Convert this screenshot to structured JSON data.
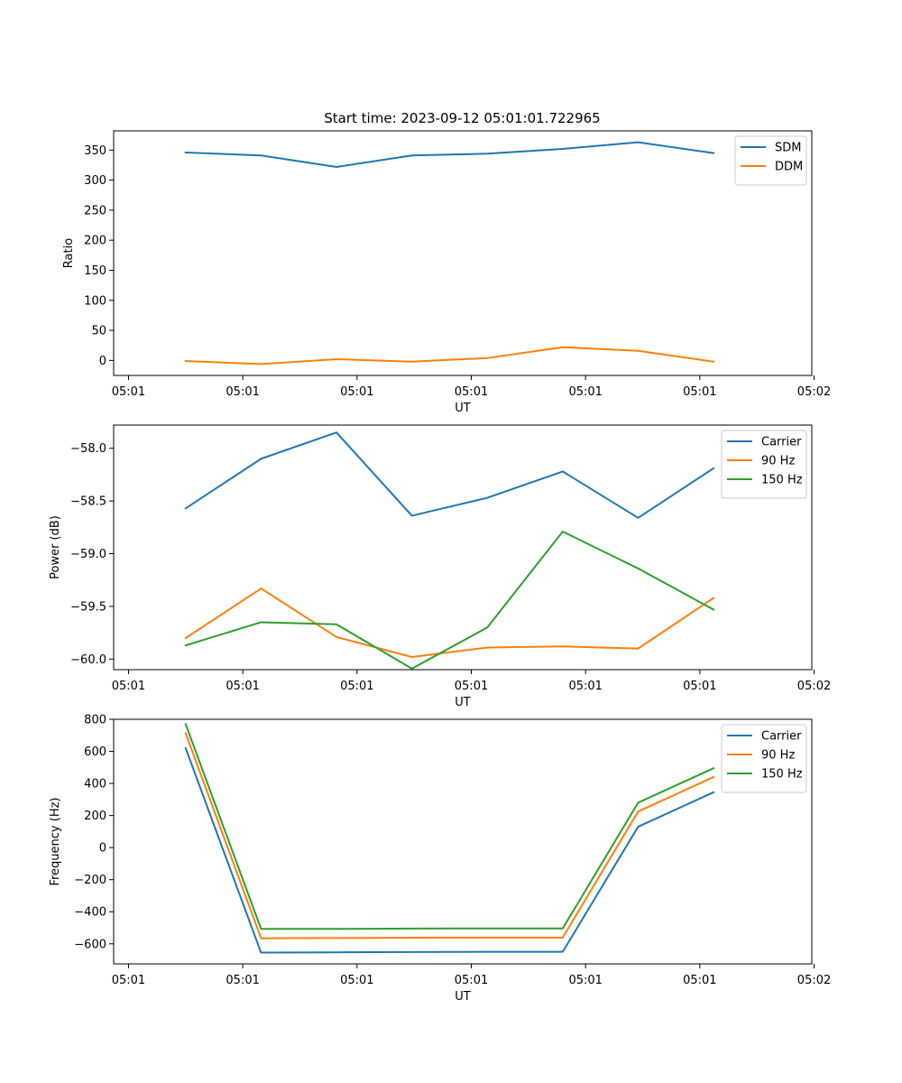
{
  "figure": {
    "title": "Start time: 2023-09-12 05:01:01.722965"
  },
  "chart_data": [
    {
      "type": "line",
      "title": "Start time: 2023-09-12 05:01:01.722965",
      "xlabel": "UT",
      "ylabel": "Ratio",
      "xlim": [
        -0.13,
        5.98
      ],
      "x_ticks": [
        0,
        1,
        2,
        3,
        4,
        5,
        6
      ],
      "x_tick_labels": [
        "05:01",
        "05:01",
        "05:01",
        "05:01",
        "05:01",
        "05:01",
        "05:02"
      ],
      "ylim": [
        -25,
        382
      ],
      "y_ticks": [
        0,
        50,
        100,
        150,
        200,
        250,
        300,
        350
      ],
      "y_tick_labels": [
        "0",
        "50",
        "100",
        "150",
        "200",
        "250",
        "300",
        "350"
      ],
      "legend": "top-right",
      "x": [
        0.5,
        1.16,
        1.82,
        2.48,
        3.14,
        3.8,
        4.46,
        5.12
      ],
      "series": [
        {
          "name": "SDM",
          "color": "#1f77b4",
          "values": [
            346,
            341,
            322,
            341,
            344,
            352,
            363,
            345
          ]
        },
        {
          "name": "DDM",
          "color": "#ff7f0e",
          "values": [
            -1,
            -6,
            2,
            -2,
            4,
            22,
            16,
            -2
          ]
        }
      ]
    },
    {
      "type": "line",
      "title": "",
      "xlabel": "UT",
      "ylabel": "Power (dB)",
      "xlim": [
        -0.13,
        5.98
      ],
      "x_ticks": [
        0,
        1,
        2,
        3,
        4,
        5,
        6
      ],
      "x_tick_labels": [
        "05:01",
        "05:01",
        "05:01",
        "05:01",
        "05:01",
        "05:01",
        "05:02"
      ],
      "ylim": [
        -60.1,
        -57.78
      ],
      "y_ticks": [
        -58.0,
        -58.5,
        -59.0,
        -59.5,
        -60.0
      ],
      "y_tick_labels": [
        "−58.0",
        "−58.5",
        "−59.0",
        "−59.5",
        "−60.0"
      ],
      "legend": "top-right",
      "x": [
        0.5,
        1.16,
        1.82,
        2.48,
        3.14,
        3.8,
        4.46,
        5.12
      ],
      "series": [
        {
          "name": "Carrier",
          "color": "#1f77b4",
          "values": [
            -58.57,
            -58.1,
            -57.85,
            -58.64,
            -58.47,
            -58.22,
            -58.66,
            -58.19
          ]
        },
        {
          "name": "90 Hz",
          "color": "#ff7f0e",
          "values": [
            -59.8,
            -59.33,
            -59.79,
            -59.98,
            -59.89,
            -59.88,
            -59.9,
            -59.42
          ]
        },
        {
          "name": "150 Hz",
          "color": "#2ca02c",
          "values": [
            -59.87,
            -59.65,
            -59.67,
            -60.09,
            -59.7,
            -58.79,
            -59.14,
            -59.53
          ]
        }
      ]
    },
    {
      "type": "line",
      "title": "",
      "xlabel": "UT",
      "ylabel": "Frequency (Hz)",
      "xlim": [
        -0.13,
        5.98
      ],
      "x_ticks": [
        0,
        1,
        2,
        3,
        4,
        5,
        6
      ],
      "x_tick_labels": [
        "05:01",
        "05:01",
        "05:01",
        "05:01",
        "05:01",
        "05:01",
        "05:02"
      ],
      "ylim": [
        -725,
        800
      ],
      "y_ticks": [
        800,
        600,
        400,
        200,
        0,
        -200,
        -400,
        -600
      ],
      "y_tick_labels": [
        "800",
        "600",
        "400",
        "200",
        "0",
        "−200",
        "−400",
        "−600"
      ],
      "legend": "top-right",
      "x": [
        0.5,
        1.16,
        1.82,
        2.48,
        3.14,
        3.8,
        4.46,
        5.12
      ],
      "series": [
        {
          "name": "Carrier",
          "color": "#1f77b4",
          "values": [
            620,
            -655,
            -653,
            -651,
            -650,
            -650,
            130,
            345
          ]
        },
        {
          "name": "90 Hz",
          "color": "#ff7f0e",
          "values": [
            713,
            -565,
            -564,
            -562,
            -561,
            -561,
            225,
            440
          ]
        },
        {
          "name": "150 Hz",
          "color": "#2ca02c",
          "values": [
            770,
            -507,
            -507,
            -505,
            -504,
            -504,
            280,
            495
          ]
        }
      ]
    }
  ]
}
